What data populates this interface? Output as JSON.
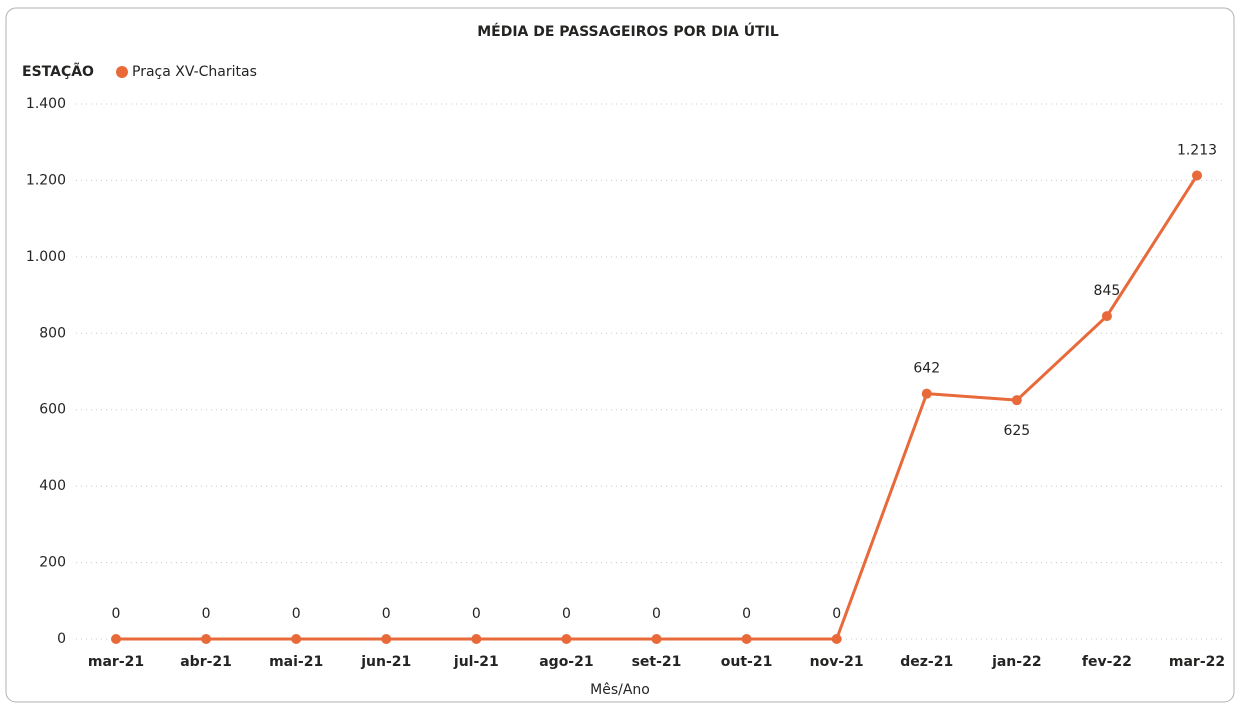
{
  "chart_data": {
    "type": "line",
    "title": "MÉDIA DE PASSAGEIROS POR DIA ÚTIL",
    "legend_title": "ESTAÇÃO",
    "x_label": "Mês/Ano",
    "categories": [
      "mar-21",
      "abr-21",
      "mai-21",
      "jun-21",
      "jul-21",
      "ago-21",
      "set-21",
      "out-21",
      "nov-21",
      "dez-21",
      "jan-22",
      "fev-22",
      "mar-22"
    ],
    "series": [
      {
        "name": "Praça XV-Charitas",
        "color": "#e8693a",
        "values": [
          0,
          0,
          0,
          0,
          0,
          0,
          0,
          0,
          0,
          642,
          625,
          845,
          1213
        ],
        "value_labels": [
          "0",
          "0",
          "0",
          "0",
          "0",
          "0",
          "0",
          "0",
          "0",
          "642",
          "625",
          "845",
          "1.213"
        ]
      }
    ],
    "ylim": [
      0,
      1400
    ],
    "yticks": [
      0,
      200,
      400,
      600,
      800,
      {
        "value": 1000,
        "label": "1.000"
      },
      {
        "value": 1200,
        "label": "1.200"
      },
      {
        "value": 1400,
        "label": "1.400"
      }
    ],
    "grid": true,
    "legend": "top-left"
  }
}
